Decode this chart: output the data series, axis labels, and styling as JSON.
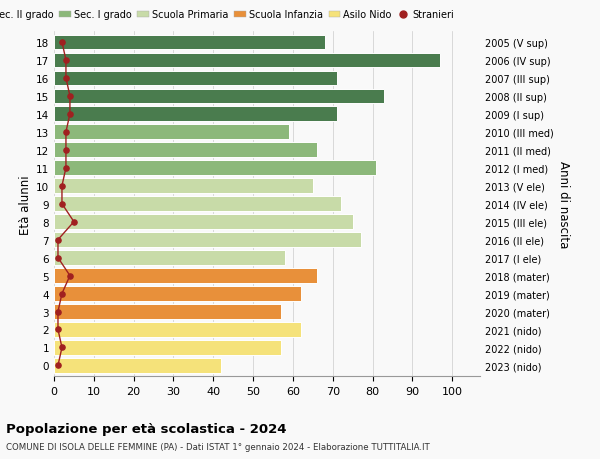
{
  "ages": [
    0,
    1,
    2,
    3,
    4,
    5,
    6,
    7,
    8,
    9,
    10,
    11,
    12,
    13,
    14,
    15,
    16,
    17,
    18
  ],
  "right_labels": [
    "2023 (nido)",
    "2022 (nido)",
    "2021 (nido)",
    "2020 (mater)",
    "2019 (mater)",
    "2018 (mater)",
    "2017 (I ele)",
    "2016 (II ele)",
    "2015 (III ele)",
    "2014 (IV ele)",
    "2013 (V ele)",
    "2012 (I med)",
    "2011 (II med)",
    "2010 (III med)",
    "2009 (I sup)",
    "2008 (II sup)",
    "2007 (III sup)",
    "2006 (IV sup)",
    "2005 (V sup)"
  ],
  "bar_values": [
    42,
    57,
    62,
    57,
    62,
    66,
    58,
    77,
    75,
    72,
    65,
    81,
    66,
    59,
    71,
    83,
    71,
    97,
    68
  ],
  "bar_colors": [
    "#f5e27a",
    "#f5e27a",
    "#f5e27a",
    "#e8903a",
    "#e8903a",
    "#e8903a",
    "#c8dba8",
    "#c8dba8",
    "#c8dba8",
    "#c8dba8",
    "#c8dba8",
    "#8cb87a",
    "#8cb87a",
    "#8cb87a",
    "#4a7c4e",
    "#4a7c4e",
    "#4a7c4e",
    "#4a7c4e",
    "#4a7c4e"
  ],
  "stranieri_values": [
    1,
    2,
    1,
    1,
    2,
    4,
    1,
    1,
    5,
    2,
    2,
    3,
    3,
    3,
    4,
    4,
    3,
    3,
    2
  ],
  "legend_labels": [
    "Sec. II grado",
    "Sec. I grado",
    "Scuola Primaria",
    "Scuola Infanzia",
    "Asilo Nido",
    "Stranieri"
  ],
  "legend_colors": [
    "#4a7c4e",
    "#8cb87a",
    "#c8dba8",
    "#e8903a",
    "#f5e27a",
    "#a02020"
  ],
  "title": "Popolazione per età scolastica - 2024",
  "subtitle": "COMUNE DI ISOLA DELLE FEMMINE (PA) - Dati ISTAT 1° gennaio 2024 - Elaborazione TUTTITALIA.IT",
  "ylabel_left": "Età alunni",
  "ylabel_right": "Anni di nascita",
  "xlim": [
    0,
    107
  ],
  "xticks": [
    0,
    10,
    20,
    30,
    40,
    50,
    60,
    70,
    80,
    90,
    100
  ],
  "bg_color": "#f9f9f9",
  "bar_edgecolor": "#ffffff",
  "grid_color": "#cccccc"
}
